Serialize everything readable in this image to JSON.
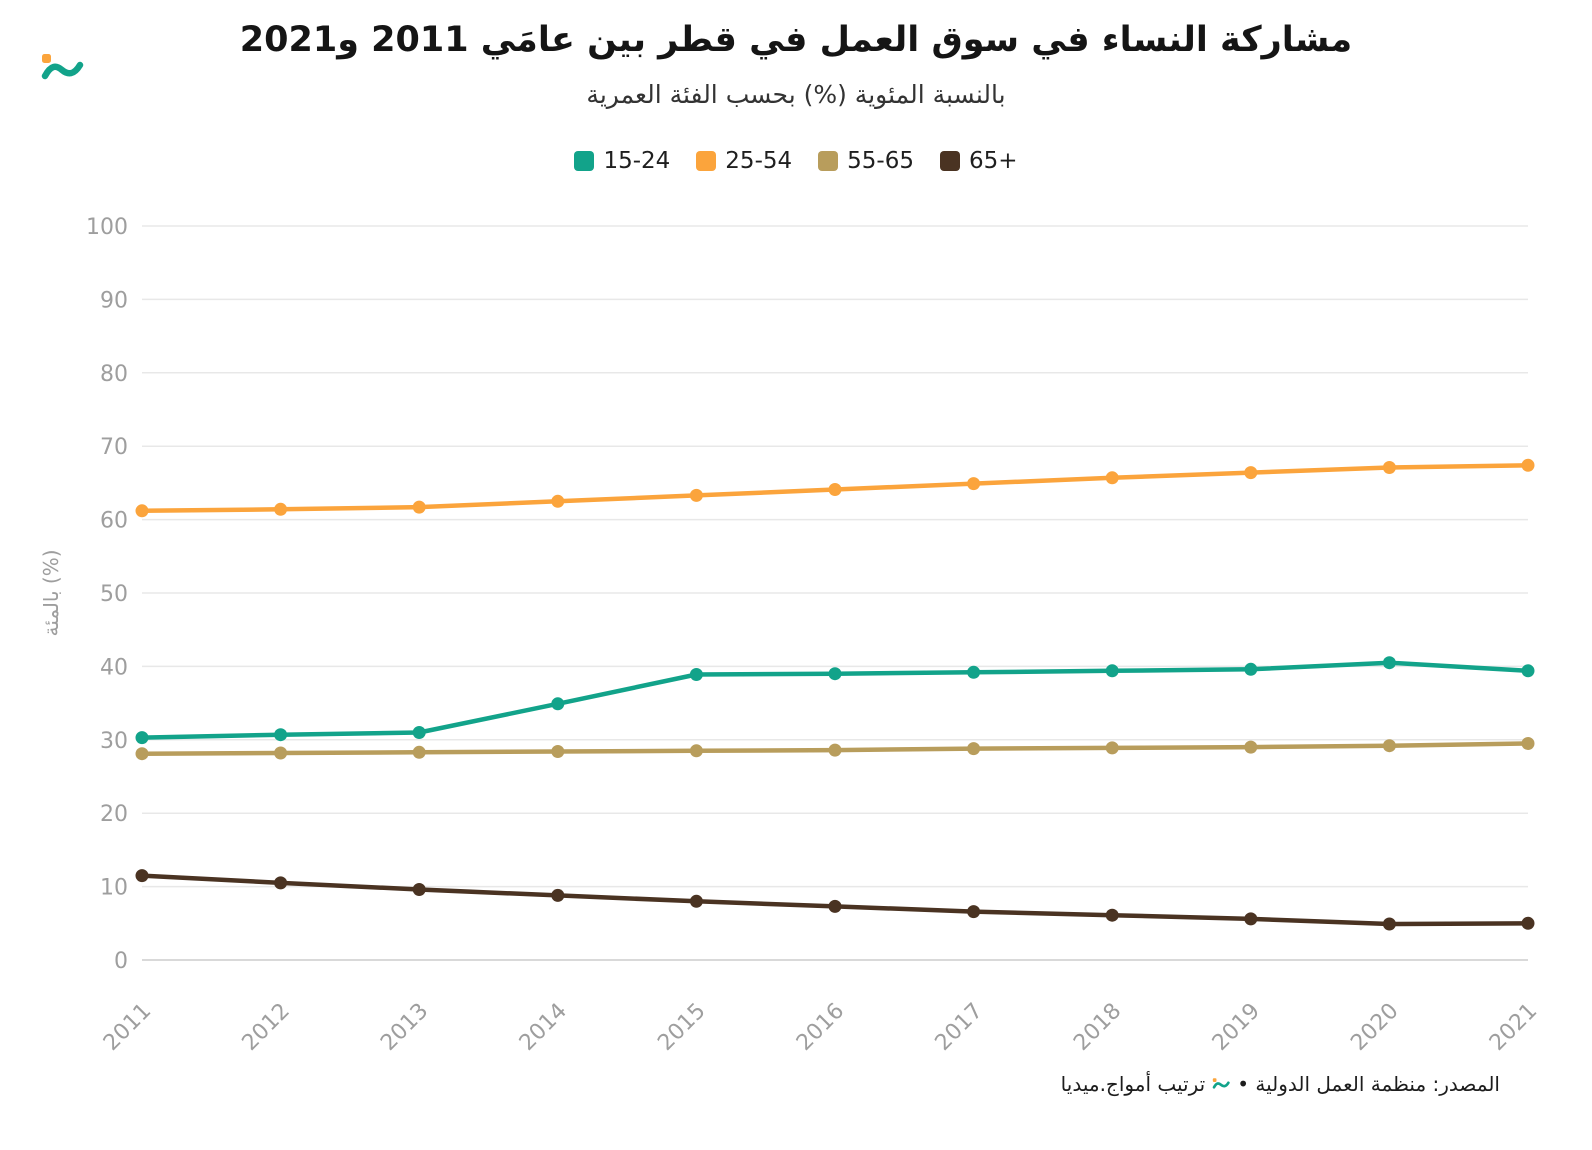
{
  "header": {
    "title": "مشاركة النساء في سوق العمل في قطر بين عامَي 2011 و2021",
    "subtitle": "بالنسبة المئوية (%) بحسب الفئة العمرية"
  },
  "legend": [
    {
      "label": "15-24",
      "color": "#12A38A"
    },
    {
      "label": "25-54",
      "color": "#FBA43C"
    },
    {
      "label": "55-65",
      "color": "#B89D5C"
    },
    {
      "label": "65+",
      "color": "#4A3322"
    }
  ],
  "chart_data": {
    "type": "line",
    "title": "مشاركة النساء في سوق العمل في قطر بين عامَي 2011 و2021",
    "subtitle": "بالنسبة المئوية (%) بحسب الفئة العمرية",
    "x": [
      2011,
      2012,
      2013,
      2014,
      2015,
      2016,
      2017,
      2018,
      2019,
      2020,
      2021
    ],
    "series": [
      {
        "name": "15-24",
        "color": "#12A38A",
        "values": [
          30.3,
          30.7,
          31.0,
          34.9,
          38.9,
          39.0,
          39.2,
          39.4,
          39.6,
          40.5,
          39.4
        ]
      },
      {
        "name": "25-54",
        "color": "#FBA43C",
        "values": [
          61.2,
          61.4,
          61.7,
          62.5,
          63.3,
          64.1,
          64.9,
          65.7,
          66.4,
          67.1,
          67.4
        ]
      },
      {
        "name": "55-65",
        "color": "#B89D5C",
        "values": [
          28.1,
          28.2,
          28.3,
          28.4,
          28.5,
          28.6,
          28.8,
          28.9,
          29.0,
          29.2,
          29.5
        ]
      },
      {
        "name": "65+",
        "color": "#4A3322",
        "values": [
          11.5,
          10.5,
          9.6,
          8.8,
          8.0,
          7.3,
          6.6,
          6.1,
          5.6,
          4.9,
          5.0
        ]
      }
    ],
    "xlabel": "",
    "ylabel": "بالمئة (%)",
    "ylim": [
      0,
      100
    ],
    "yticks": [
      0,
      10,
      20,
      30,
      40,
      50,
      60,
      70,
      80,
      90,
      100
    ],
    "grid": true,
    "legend_position": "top"
  },
  "footer": {
    "credit_right": "المصدر: منظمة العمل الدولية •",
    "credit_left": "ترتيب أمواج.ميديا"
  },
  "icons": {
    "brand_logo": "amwaj-wave-mark",
    "footer_logo": "amwaj-wave-mark-small"
  },
  "colors": {
    "background": "#ffffff",
    "grid": "#e8e8e8",
    "axis_text": "#9e9e9e",
    "title_text": "#151515"
  }
}
